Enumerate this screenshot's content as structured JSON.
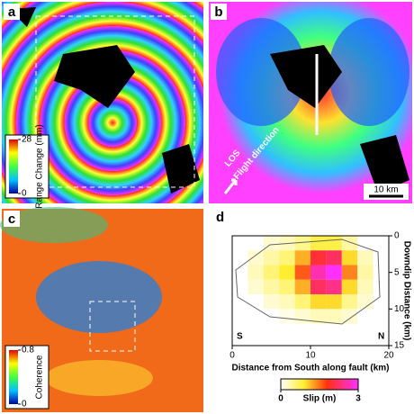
{
  "panels": [
    {
      "label": "a",
      "colorbar": {
        "title": "Range Change (mm)",
        "lim": [
          0,
          28
        ],
        "ticks": [
          0,
          28
        ]
      }
    },
    {
      "label": "b",
      "annotations": [
        "LOS",
        "Flight direction"
      ],
      "scalebar": "10 km"
    },
    {
      "label": "c",
      "colorbar": {
        "title": "Coherence",
        "lim": [
          0,
          0.8
        ],
        "ticks": [
          0,
          0.8
        ]
      }
    }
  ],
  "chart_data": {
    "type": "heatmap",
    "label": "d",
    "xlabel": "Distance from South along fault (km)",
    "ylabel": "Downdip Distance (km)",
    "xlim": [
      0,
      20
    ],
    "xticks": [
      0,
      10,
      20
    ],
    "ylim": [
      0,
      15
    ],
    "yticks": [
      0,
      5,
      10,
      15
    ],
    "x": [
      3,
      5,
      7,
      9,
      11,
      13,
      15,
      17
    ],
    "y": [
      1,
      3,
      5,
      7,
      9,
      11
    ],
    "values": [
      [
        null,
        0.2,
        0.3,
        0.5,
        0.8,
        0.8,
        0.4,
        null
      ],
      [
        0.2,
        0.4,
        0.6,
        1.2,
        2.0,
        2.2,
        1.0,
        0.3
      ],
      [
        0.3,
        0.6,
        0.9,
        1.6,
        2.6,
        3.0,
        1.4,
        0.4
      ],
      [
        0.2,
        0.4,
        0.6,
        1.2,
        2.2,
        2.4,
        1.0,
        0.3
      ],
      [
        null,
        0.2,
        0.3,
        0.6,
        1.0,
        1.0,
        0.5,
        0.2
      ],
      [
        null,
        null,
        0.1,
        0.2,
        0.3,
        0.3,
        0.2,
        null
      ]
    ],
    "annotations": [
      "S",
      "N"
    ],
    "colorbar": {
      "title": "Slip (m)",
      "lim": [
        0,
        3
      ],
      "ticks": [
        0,
        3
      ]
    }
  }
}
